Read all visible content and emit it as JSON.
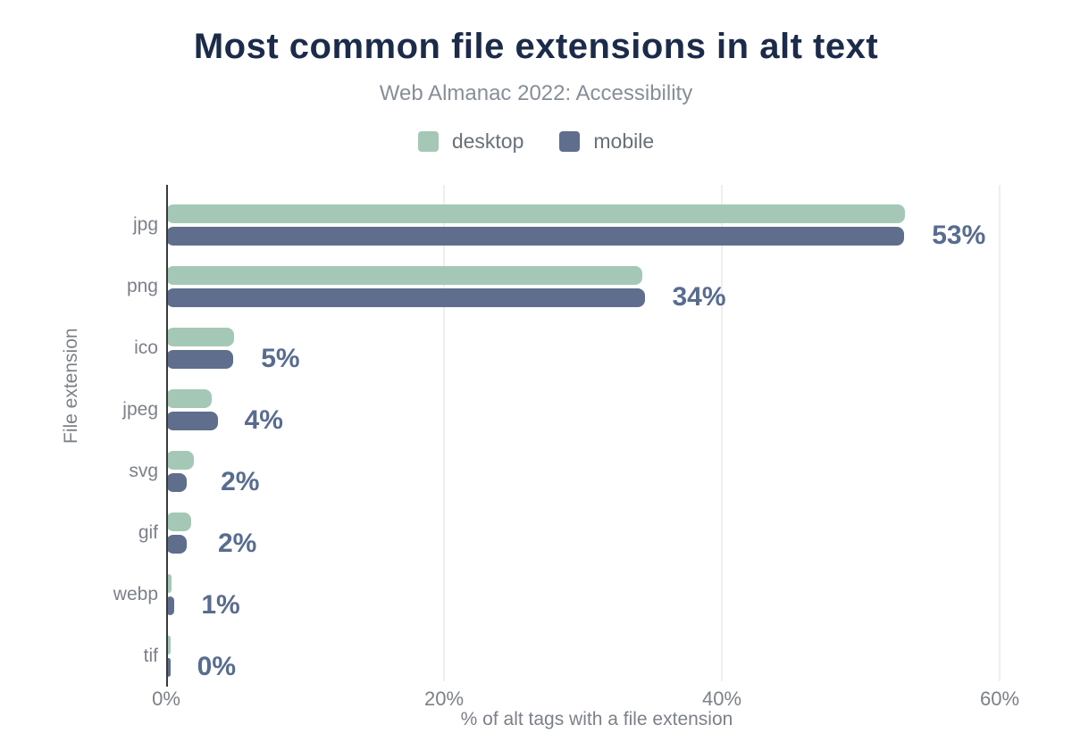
{
  "page": {
    "background": "#ffffff"
  },
  "header": {
    "title": "Most common file extensions in alt text",
    "subtitle": "Web Almanac 2022: Accessibility"
  },
  "legend": {
    "items": [
      {
        "label": "desktop",
        "color": "#a5c8b6"
      },
      {
        "label": "mobile",
        "color": "#5f6e8c"
      }
    ]
  },
  "chart_data": {
    "type": "bar",
    "orientation": "horizontal",
    "title": "Most common file extensions in alt text",
    "subtitle": "Web Almanac 2022: Accessibility",
    "xlabel": "% of alt tags with a file extension",
    "ylabel": "File extension",
    "categories": [
      "jpg",
      "png",
      "ico",
      "jpeg",
      "svg",
      "gif",
      "webp",
      "tif"
    ],
    "series": [
      {
        "name": "desktop",
        "color": "#a5c8b6",
        "values": [
          53.2,
          34.3,
          4.9,
          3.3,
          2.0,
          1.8,
          0.4,
          0.3
        ]
      },
      {
        "name": "mobile",
        "color": "#5f6e8c",
        "values": [
          53.1,
          34.5,
          4.8,
          3.7,
          1.5,
          1.5,
          0.6,
          0.3
        ]
      }
    ],
    "value_labels": [
      "53%",
      "34%",
      "5%",
      "4%",
      "2%",
      "2%",
      "1%",
      "0%"
    ],
    "xlim": [
      0,
      62
    ],
    "xticks": [
      {
        "value": 0,
        "label": "0%"
      },
      {
        "value": 20,
        "label": "20%"
      },
      {
        "value": 40,
        "label": "40%"
      },
      {
        "value": 60,
        "label": "60%"
      }
    ],
    "grid": "vertical",
    "legend_position": "top"
  },
  "colors": {
    "background": "#ffffff",
    "title": "#1c2b4a",
    "subtitle": "#878e98",
    "axis_text": "#7c8188",
    "legend_text": "#697077",
    "value_label": "#586c8f",
    "gridline": "#efefef",
    "axis_line": "#3a3a3a"
  }
}
